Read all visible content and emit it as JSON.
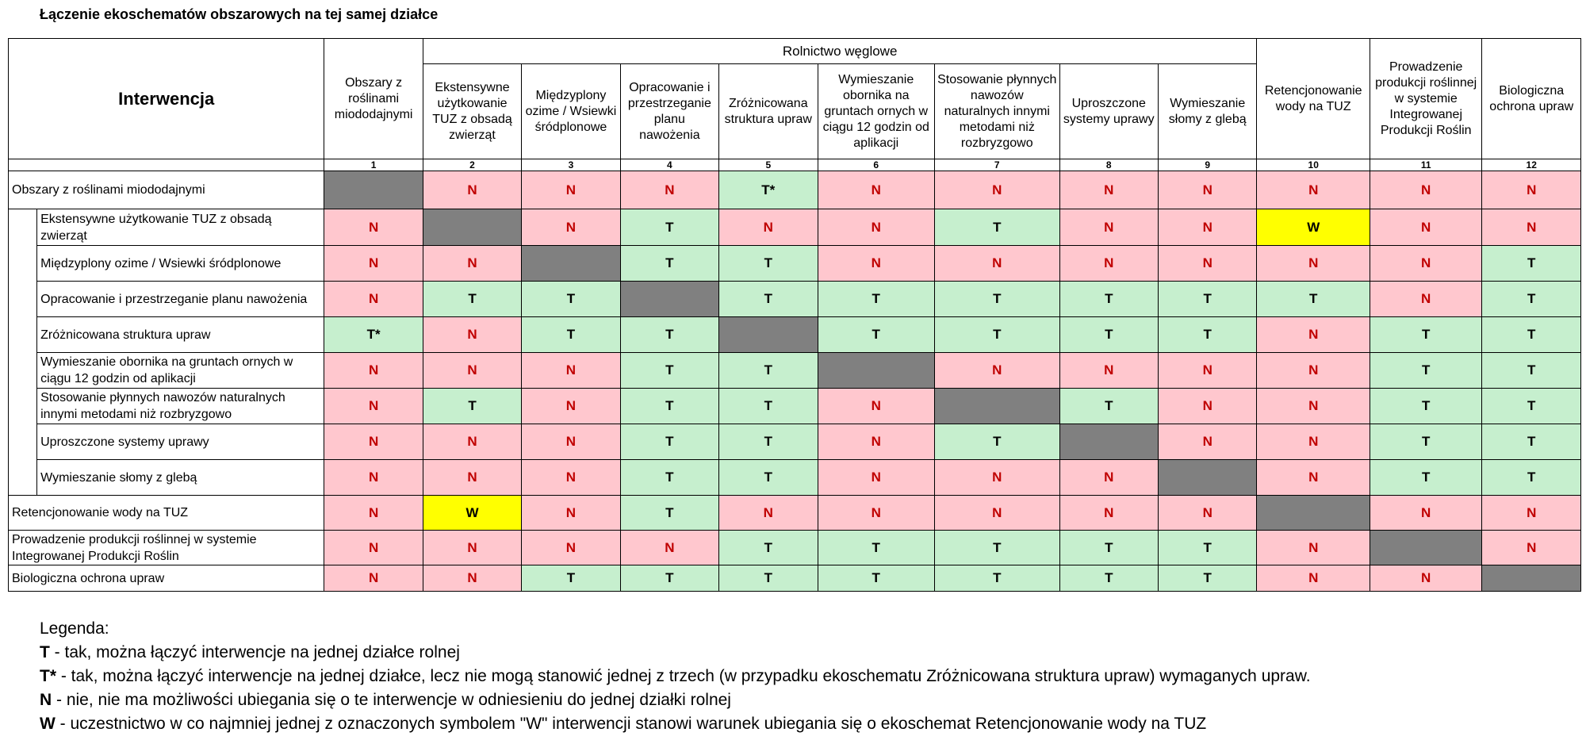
{
  "title": "Łączenie ekoschematów obszarowych na tej samej działce",
  "header": {
    "interwencja": "Interwencja",
    "group": "Rolnictwo węglowe"
  },
  "columns": [
    {
      "num": "1",
      "label": "Obszary z roślinami miododajnymi"
    },
    {
      "num": "2",
      "label": "Ekstensywne użytkowanie TUZ z obsadą zwierząt"
    },
    {
      "num": "3",
      "label": "Międzyplony ozime / Wsiewki śródplonowe"
    },
    {
      "num": "4",
      "label": "Opracowanie i przestrzeganie planu nawożenia"
    },
    {
      "num": "5",
      "label": "Zróżnicowana struktura upraw"
    },
    {
      "num": "6",
      "label": "Wymieszanie obornika na gruntach ornych w ciągu 12 godzin od aplikacji"
    },
    {
      "num": "7",
      "label": "Stosowanie płynnych nawozów naturalnych innymi metodami niż rozbryzgowo"
    },
    {
      "num": "8",
      "label": "Uproszczone systemy uprawy"
    },
    {
      "num": "9",
      "label": "Wymieszanie słomy z glebą"
    },
    {
      "num": "10",
      "label": "Retencjonowanie wody na TUZ"
    },
    {
      "num": "11",
      "label": "Prowadzenie produkcji roślinnej w systemie Integrowanej Produkcji Roślin"
    },
    {
      "num": "12",
      "label": "Biologiczna ochrona upraw"
    }
  ],
  "row_group_label": "Rolnictwo węglowe",
  "rows": [
    {
      "label": "Obszary z roślinami miododajnymi",
      "cells": [
        "",
        "N",
        "N",
        "N",
        "T*",
        "N",
        "N",
        "N",
        "N",
        "N",
        "N",
        "N"
      ]
    },
    {
      "label": "Ekstensywne użytkowanie TUZ z obsadą zwierząt",
      "cells": [
        "N",
        "",
        "N",
        "T",
        "N",
        "N",
        "T",
        "N",
        "N",
        "W",
        "N",
        "N"
      ]
    },
    {
      "label": "Międzyplony ozime / Wsiewki śródplonowe",
      "cells": [
        "N",
        "N",
        "",
        "T",
        "T",
        "N",
        "N",
        "N",
        "N",
        "N",
        "N",
        "T"
      ]
    },
    {
      "label": "Opracowanie i przestrzeganie planu nawożenia",
      "cells": [
        "N",
        "T",
        "T",
        "",
        "T",
        "T",
        "T",
        "T",
        "T",
        "T",
        "N",
        "T"
      ]
    },
    {
      "label": "Zróżnicowana struktura upraw",
      "cells": [
        "T*",
        "N",
        "T",
        "T",
        "",
        "T",
        "T",
        "T",
        "T",
        "N",
        "T",
        "T"
      ]
    },
    {
      "label": "Wymieszanie obornika na gruntach ornych w ciągu 12 godzin od aplikacji",
      "cells": [
        "N",
        "N",
        "N",
        "T",
        "T",
        "",
        "N",
        "N",
        "N",
        "N",
        "T",
        "T"
      ]
    },
    {
      "label": "Stosowanie płynnych nawozów naturalnych innymi metodami niż rozbryzgowo",
      "cells": [
        "N",
        "T",
        "N",
        "T",
        "T",
        "N",
        "",
        "T",
        "N",
        "N",
        "T",
        "T"
      ]
    },
    {
      "label": "Uproszczone systemy uprawy",
      "cells": [
        "N",
        "N",
        "N",
        "T",
        "T",
        "N",
        "T",
        "",
        "N",
        "N",
        "T",
        "T"
      ]
    },
    {
      "label": "Wymieszanie słomy z glebą",
      "cells": [
        "N",
        "N",
        "N",
        "T",
        "T",
        "N",
        "N",
        "N",
        "",
        "N",
        "T",
        "T"
      ]
    },
    {
      "label": "Retencjonowanie wody na TUZ",
      "cells": [
        "N",
        "W",
        "N",
        "T",
        "N",
        "N",
        "N",
        "N",
        "N",
        "",
        "N",
        "N"
      ]
    },
    {
      "label": "Prowadzenie produkcji roślinnej w systemie Integrowanej Produkcji Roślin",
      "cells": [
        "N",
        "N",
        "N",
        "N",
        "T",
        "T",
        "T",
        "T",
        "T",
        "N",
        "",
        "N"
      ]
    },
    {
      "label": "Biologiczna ochrona upraw",
      "cells": [
        "N",
        "N",
        "T",
        "T",
        "T",
        "T",
        "T",
        "T",
        "T",
        "N",
        "N",
        ""
      ]
    }
  ],
  "legend": {
    "title": "Legenda:",
    "items": [
      {
        "key": "T",
        "text": " - tak, można łączyć interwencje na jednej działce rolnej"
      },
      {
        "key": "T*",
        "text": " - tak, można łączyć interwencje na jednej działce, lecz nie mogą stanowić jednej z trzech (w przypadku ekoschematu Zróżnicowana struktura upraw) wymaganych upraw."
      },
      {
        "key": "N",
        "text": " - nie, nie ma możliwości ubiegania się o te interwencje w odniesieniu do jednej działki rolnej"
      },
      {
        "key": "W",
        "text": " - uczestnictwo w co najmniej jednej z oznaczonych symbolem \"W\" interwencji stanowi warunek ubiegania się o ekoschemat Retencjonowanie wody na TUZ"
      }
    ]
  },
  "colors": {
    "tak": "#c6efce",
    "nie": "#ffc7ce",
    "nie_text": "#c00000",
    "warunek": "#ffff00",
    "diagonal": "#808080"
  }
}
